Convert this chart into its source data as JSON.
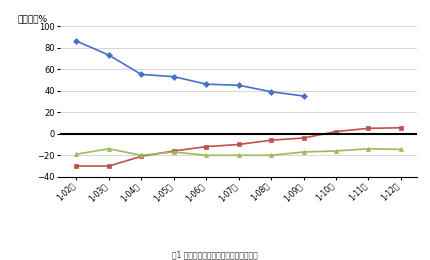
{
  "x_labels": [
    "1-02月",
    "1-03月",
    "1-04月",
    "1-05月",
    "1-06月",
    "1-07月",
    "1-08月",
    "1-09月",
    "1-10月",
    "1-11月",
    "1-12月"
  ],
  "y2021": [
    86.0,
    73.0,
    55.0,
    53.0,
    46.0,
    45.0,
    39.0,
    35.0,
    null,
    null,
    null
  ],
  "y2020": [
    -30.0,
    -30.0,
    -21.0,
    -16.0,
    -12.0,
    -10.0,
    -6.0,
    -4.0,
    2.0,
    5.0,
    5.5
  ],
  "y2019": [
    -19.0,
    -14.0,
    -20.0,
    -17.0,
    -20.0,
    -20.0,
    -20.0,
    -17.0,
    -16.0,
    -14.0,
    -14.5
  ],
  "color_2021": "#4472C4",
  "color_2020": "#C0504D",
  "color_2019": "#9BBB59",
  "ylabel": "同比增速%",
  "ylim": [
    -40.0,
    100.0
  ],
  "yticks": [
    -40.0,
    -20.0,
    0.0,
    20.0,
    40.0,
    60.0,
    80.0,
    100.0
  ],
  "caption": "图1 重点联系企业营业收入同比增速情况"
}
